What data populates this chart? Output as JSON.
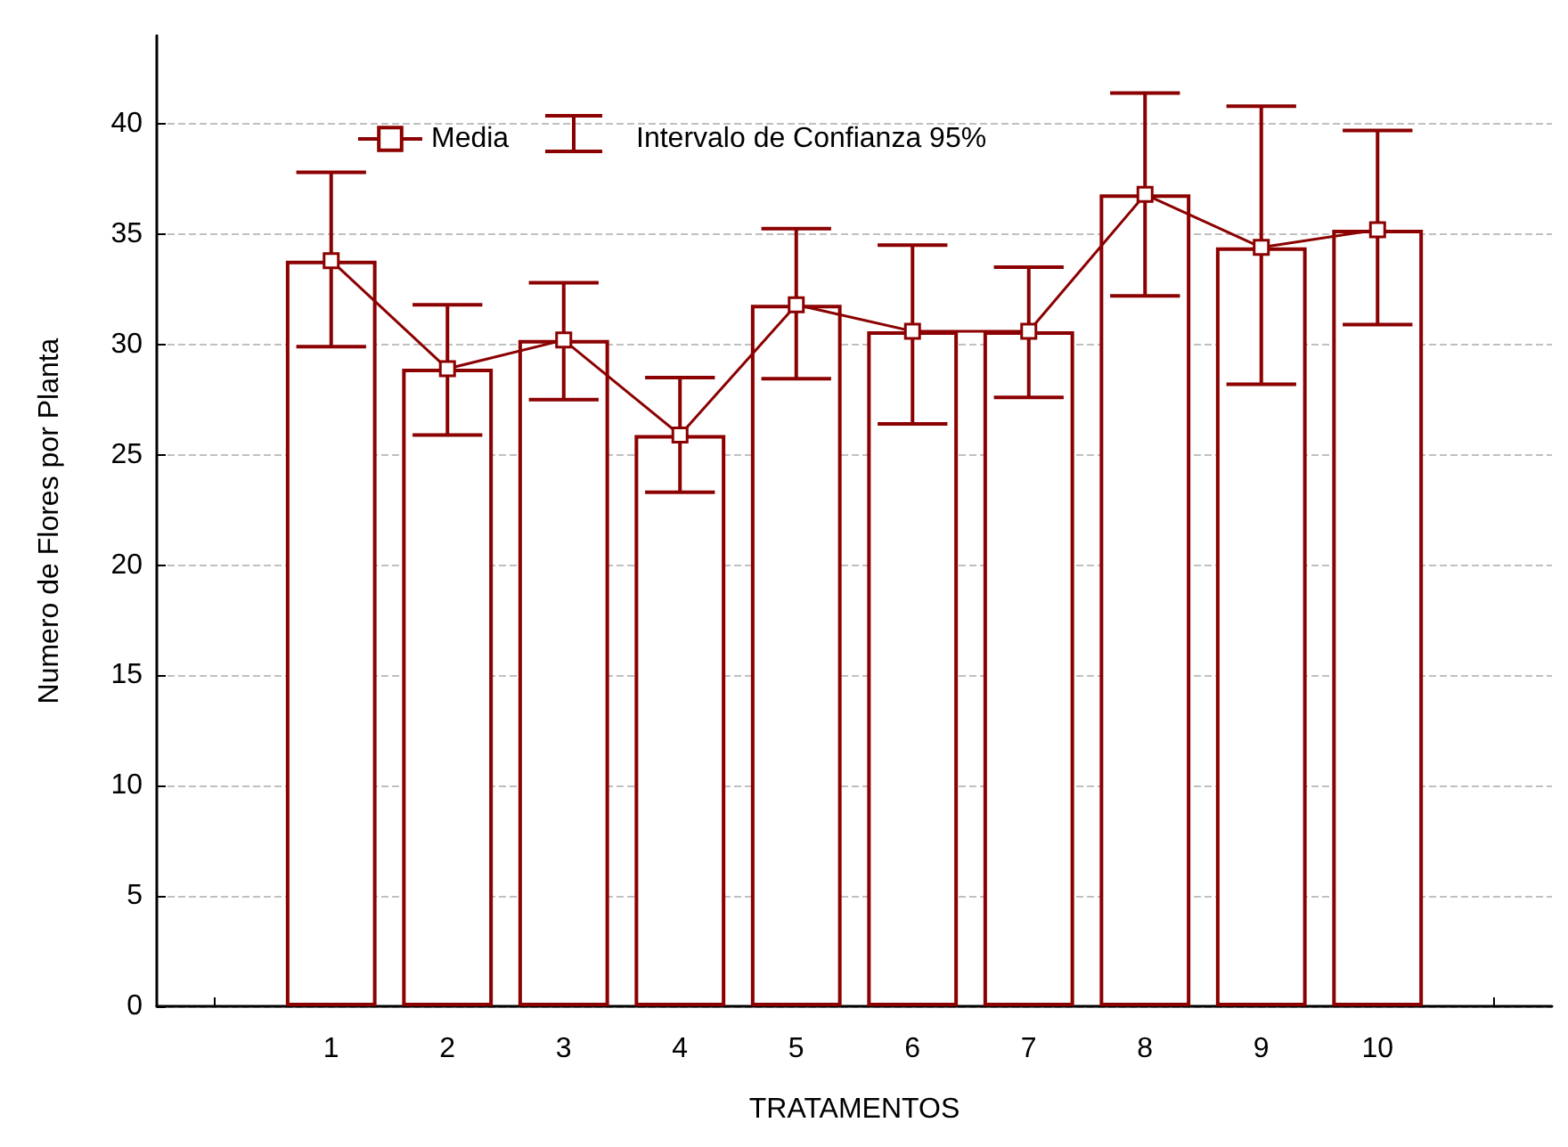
{
  "chart_data": {
    "type": "bar",
    "xlabel": "TRATAMENTOS",
    "ylabel": "Numero de Flores por Planta",
    "categories": [
      null,
      "1",
      "2",
      "3",
      "4",
      "5",
      "6",
      "7",
      "8",
      "9",
      "10",
      null
    ],
    "series": [
      {
        "color": "#8b0000",
        "values": [
          null,
          33.8,
          28.9,
          30.2,
          25.9,
          31.8,
          30.6,
          30.6,
          36.8,
          34.4,
          35.2,
          null
        ]
      },
      {
        "type": "line",
        "name": "Media",
        "color": "#8b0000",
        "marker": "square",
        "values": [
          null,
          33.8,
          28.9,
          30.2,
          25.9,
          31.8,
          30.6,
          30.6,
          36.8,
          34.4,
          35.2,
          null
        ],
        "errors": [
          null,
          [
            29.9,
            37.8
          ],
          [
            25.9,
            31.8
          ],
          [
            27.5,
            32.8
          ],
          [
            23.3,
            28.5
          ],
          [
            28.45,
            35.25
          ],
          [
            26.4,
            34.5
          ],
          [
            27.6,
            33.5
          ],
          [
            32.2,
            41.4
          ],
          [
            28.2,
            40.8
          ],
          [
            30.9,
            39.7
          ],
          null
        ]
      }
    ],
    "annotations": [
      "Intervalo de Confianza 95%"
    ],
    "ylim": [
      0,
      44
    ],
    "yticks": [
      0,
      5,
      10,
      15,
      20,
      25,
      30,
      35,
      40
    ],
    "grid": "y",
    "legend": "top"
  }
}
